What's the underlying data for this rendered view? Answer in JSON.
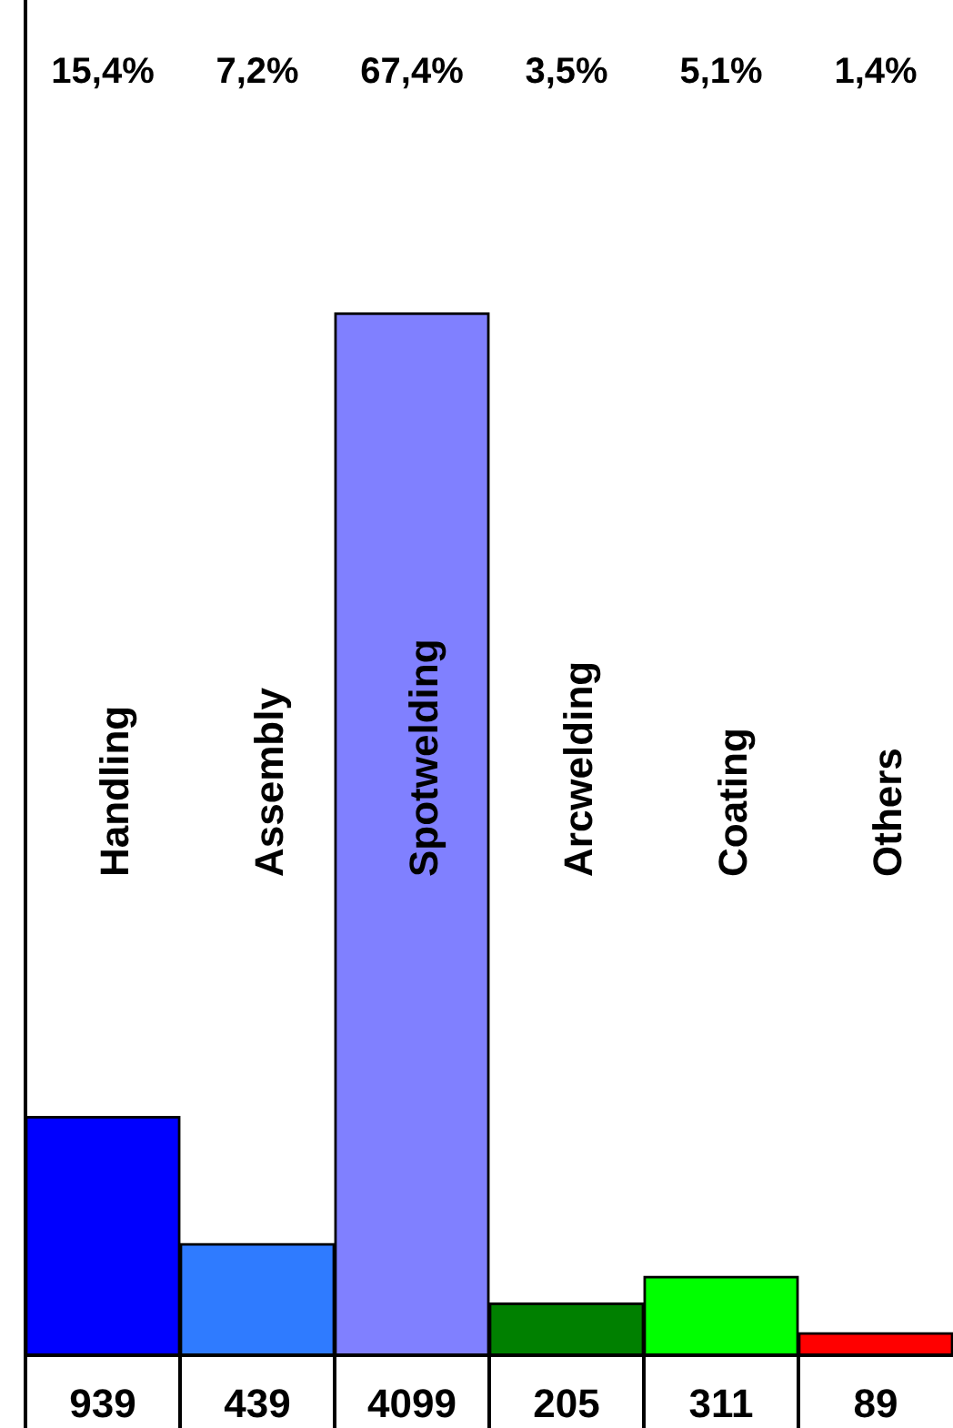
{
  "chart_data": {
    "type": "bar",
    "categories": [
      "Handling",
      "Assembly",
      "Spotwelding",
      "Arcwelding",
      "Coating",
      "Others"
    ],
    "values": [
      939,
      439,
      4099,
      205,
      311,
      89
    ],
    "colors": [
      "#0000ff",
      "#2f7bff",
      "#8080ff",
      "#008000",
      "#00ff00",
      "#ff0000"
    ],
    "data_labels": true,
    "annotations": [
      "15,4%",
      "7,2%",
      "67,4%",
      "3,5%",
      "5,1%",
      "1,4%"
    ]
  }
}
